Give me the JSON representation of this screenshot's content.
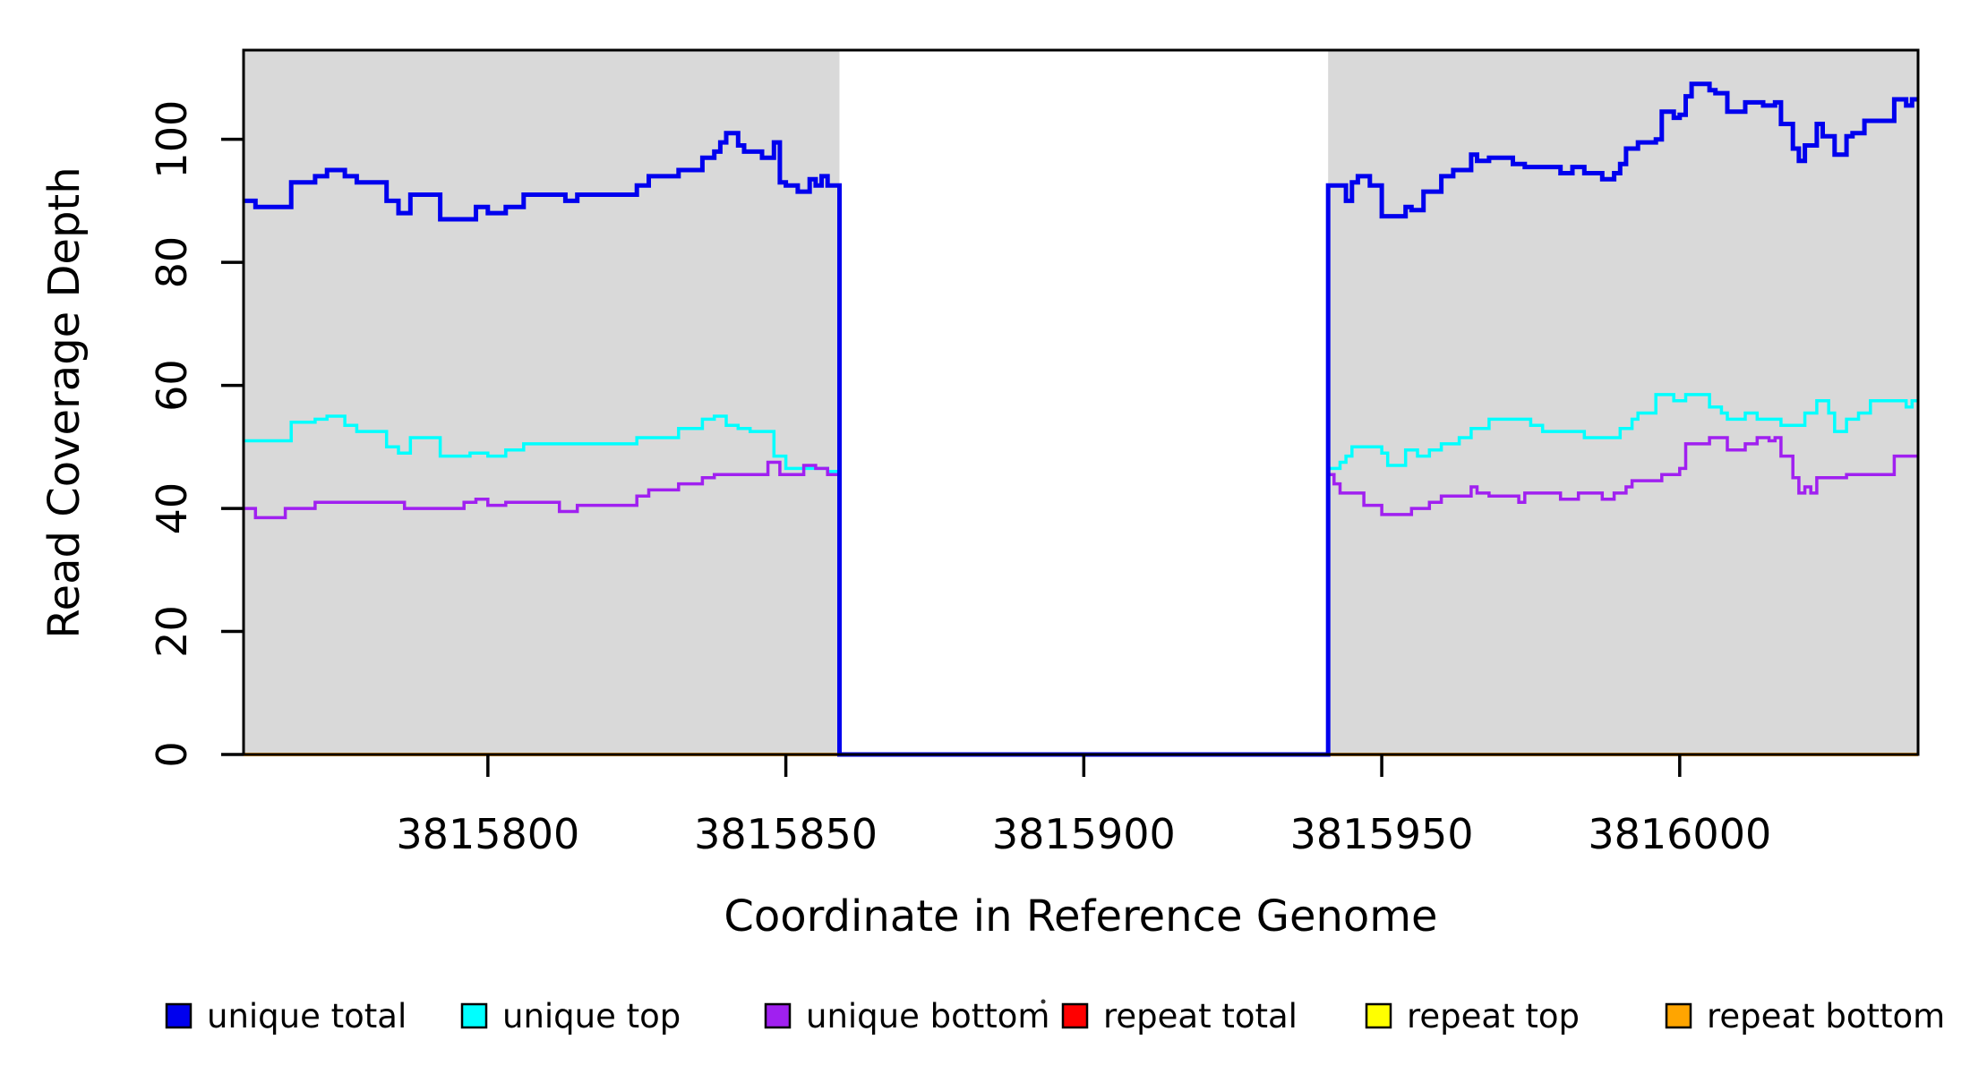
{
  "chart_data": {
    "type": "step-line",
    "title": "",
    "xlabel": "Coordinate in Reference Genome",
    "ylabel": "Read Coverage Depth",
    "xlim": [
      3815759,
      3816040
    ],
    "ylim": [
      0,
      114.5
    ],
    "x_ticks": [
      3815800,
      3815850,
      3815900,
      3815950,
      3816000
    ],
    "y_ticks": [
      0,
      20,
      40,
      60,
      80,
      100
    ],
    "grid": false,
    "legend_position": "bottom",
    "background_regions": [
      {
        "name": "covered-left",
        "from": 3815759,
        "to": 3815859,
        "color": "#D9D9D9"
      },
      {
        "name": "coverage-gap",
        "from": 3815859,
        "to": 3815941,
        "color": "#FFFFFF"
      },
      {
        "name": "covered-right",
        "from": 3815941,
        "to": 3816040,
        "color": "#D9D9D9"
      }
    ],
    "series": [
      {
        "name": "repeat total",
        "color": "#FF0000",
        "line_width": 3.5,
        "points": [
          [
            3815759,
            0
          ]
        ]
      },
      {
        "name": "repeat top",
        "color": "#FFFF00",
        "line_width": 3.5,
        "points": [
          [
            3815759,
            0
          ]
        ]
      },
      {
        "name": "repeat bottom",
        "color": "#FFA500",
        "line_width": 4,
        "points": [
          [
            3815759,
            0
          ]
        ]
      },
      {
        "name": "unique top",
        "color": "#00FFFF",
        "line_width": 3.5,
        "points": [
          [
            3815759,
            51
          ],
          [
            3815767,
            54
          ],
          [
            3815771,
            54.5
          ],
          [
            3815773,
            55
          ],
          [
            3815776,
            53.5
          ],
          [
            3815778,
            52.5
          ],
          [
            3815783,
            50
          ],
          [
            3815785,
            49
          ],
          [
            3815787,
            51.5
          ],
          [
            3815792,
            48.5
          ],
          [
            3815797,
            49
          ],
          [
            3815800,
            48.5
          ],
          [
            3815803,
            49.5
          ],
          [
            3815806,
            50.5
          ],
          [
            3815825,
            51.5
          ],
          [
            3815832,
            53
          ],
          [
            3815836,
            54.5
          ],
          [
            3815838,
            55
          ],
          [
            3815840,
            53.5
          ],
          [
            3815842,
            53
          ],
          [
            3815844,
            52.5
          ],
          [
            3815848,
            48.5
          ],
          [
            3815850,
            46.5
          ],
          [
            3815857,
            46
          ],
          [
            3815859,
            0
          ],
          [
            3815941,
            46.5
          ],
          [
            3815943,
            47.5
          ],
          [
            3815944,
            48.5
          ],
          [
            3815945,
            50
          ],
          [
            3815950,
            49
          ],
          [
            3815951,
            47
          ],
          [
            3815954,
            49.5
          ],
          [
            3815956,
            48.5
          ],
          [
            3815958,
            49.5
          ],
          [
            3815960,
            50.5
          ],
          [
            3815963,
            51.5
          ],
          [
            3815965,
            53
          ],
          [
            3815968,
            54.5
          ],
          [
            3815975,
            53.5
          ],
          [
            3815977,
            52.5
          ],
          [
            3815984,
            51.5
          ],
          [
            3815990,
            53
          ],
          [
            3815992,
            54.5
          ],
          [
            3815993,
            55.5
          ],
          [
            3815996,
            58.5
          ],
          [
            3815999,
            57.5
          ],
          [
            3816001,
            58.5
          ],
          [
            3816005,
            56.5
          ],
          [
            3816007,
            55.5
          ],
          [
            3816008,
            54.5
          ],
          [
            3816011,
            55.5
          ],
          [
            3816013,
            54.5
          ],
          [
            3816017,
            53.5
          ],
          [
            3816021,
            55.5
          ],
          [
            3816023,
            57.5
          ],
          [
            3816025,
            55.5
          ],
          [
            3816026,
            52.5
          ],
          [
            3816028,
            54.5
          ],
          [
            3816030,
            55.5
          ],
          [
            3816032,
            57.5
          ],
          [
            3816038,
            56.5
          ],
          [
            3816039,
            57.5
          ]
        ]
      },
      {
        "name": "unique bottom",
        "color": "#A020F0",
        "line_width": 3.5,
        "points": [
          [
            3815759,
            40
          ],
          [
            3815761,
            38.5
          ],
          [
            3815766,
            40
          ],
          [
            3815771,
            41
          ],
          [
            3815786,
            40
          ],
          [
            3815796,
            41
          ],
          [
            3815798,
            41.5
          ],
          [
            3815800,
            40.5
          ],
          [
            3815803,
            41
          ],
          [
            3815811,
            41
          ],
          [
            3815812,
            39.5
          ],
          [
            3815815,
            40.5
          ],
          [
            3815825,
            42
          ],
          [
            3815827,
            43
          ],
          [
            3815832,
            44
          ],
          [
            3815836,
            45
          ],
          [
            3815838,
            45.5
          ],
          [
            3815847,
            47.5
          ],
          [
            3815849,
            45.5
          ],
          [
            3815853,
            47
          ],
          [
            3815855,
            46.5
          ],
          [
            3815857,
            45.5
          ],
          [
            3815859,
            0
          ],
          [
            3815941,
            45.5
          ],
          [
            3815942,
            44
          ],
          [
            3815943,
            42.5
          ],
          [
            3815947,
            40.5
          ],
          [
            3815950,
            39
          ],
          [
            3815955,
            40
          ],
          [
            3815958,
            41
          ],
          [
            3815960,
            42
          ],
          [
            3815965,
            43.5
          ],
          [
            3815966,
            42.5
          ],
          [
            3815968,
            42
          ],
          [
            3815973,
            41
          ],
          [
            3815974,
            42.5
          ],
          [
            3815980,
            41.5
          ],
          [
            3815983,
            42.5
          ],
          [
            3815987,
            41.5
          ],
          [
            3815989,
            42.5
          ],
          [
            3815991,
            43.5
          ],
          [
            3815992,
            44.5
          ],
          [
            3815997,
            45.5
          ],
          [
            3816000,
            46.5
          ],
          [
            3816001,
            50.5
          ],
          [
            3816005,
            51.5
          ],
          [
            3816008,
            49.5
          ],
          [
            3816011,
            50.5
          ],
          [
            3816013,
            51.5
          ],
          [
            3816015,
            51
          ],
          [
            3816016,
            51.5
          ],
          [
            3816017,
            48.5
          ],
          [
            3816019,
            45
          ],
          [
            3816020,
            42.5
          ],
          [
            3816021,
            43.5
          ],
          [
            3816022,
            42.5
          ],
          [
            3816023,
            45
          ],
          [
            3816028,
            45.5
          ],
          [
            3816036,
            48.5
          ]
        ]
      },
      {
        "name": "unique total",
        "color": "#0000EE",
        "line_width": 5,
        "points": [
          [
            3815759,
            90
          ],
          [
            3815761,
            89
          ],
          [
            3815767,
            93
          ],
          [
            3815771,
            94
          ],
          [
            3815773,
            95
          ],
          [
            3815776,
            94
          ],
          [
            3815778,
            93
          ],
          [
            3815783,
            90
          ],
          [
            3815785,
            88
          ],
          [
            3815787,
            91
          ],
          [
            3815792,
            87
          ],
          [
            3815798,
            89
          ],
          [
            3815800,
            88
          ],
          [
            3815803,
            89
          ],
          [
            3815806,
            91
          ],
          [
            3815813,
            90
          ],
          [
            3815815,
            91
          ],
          [
            3815825,
            92.5
          ],
          [
            3815827,
            94
          ],
          [
            3815832,
            95
          ],
          [
            3815836,
            97
          ],
          [
            3815838,
            98
          ],
          [
            3815839,
            99.5
          ],
          [
            3815840,
            101
          ],
          [
            3815842,
            99
          ],
          [
            3815843,
            98
          ],
          [
            3815846,
            97
          ],
          [
            3815848,
            99.5
          ],
          [
            3815849,
            93
          ],
          [
            3815850,
            92.5
          ],
          [
            3815852,
            91.5
          ],
          [
            3815854,
            93.5
          ],
          [
            3815855,
            92.5
          ],
          [
            3815856,
            94
          ],
          [
            3815857,
            92.5
          ],
          [
            3815859,
            0
          ],
          [
            3815941,
            92.5
          ],
          [
            3815944,
            90
          ],
          [
            3815945,
            93
          ],
          [
            3815946,
            94
          ],
          [
            3815948,
            92.5
          ],
          [
            3815950,
            87.5
          ],
          [
            3815954,
            89
          ],
          [
            3815955,
            88.5
          ],
          [
            3815957,
            91.5
          ],
          [
            3815960,
            94
          ],
          [
            3815962,
            95
          ],
          [
            3815965,
            97.5
          ],
          [
            3815966,
            96.5
          ],
          [
            3815968,
            97
          ],
          [
            3815972,
            96
          ],
          [
            3815974,
            95.5
          ],
          [
            3815980,
            94.5
          ],
          [
            3815982,
            95.5
          ],
          [
            3815984,
            94.5
          ],
          [
            3815987,
            93.5
          ],
          [
            3815989,
            94.5
          ],
          [
            3815990,
            96
          ],
          [
            3815991,
            98.5
          ],
          [
            3815993,
            99.5
          ],
          [
            3815996,
            100
          ],
          [
            3815997,
            104.5
          ],
          [
            3815999,
            103.5
          ],
          [
            3816000,
            104
          ],
          [
            3816001,
            107
          ],
          [
            3816002,
            109
          ],
          [
            3816005,
            108
          ],
          [
            3816006,
            107.5
          ],
          [
            3816008,
            104.5
          ],
          [
            3816011,
            106
          ],
          [
            3816014,
            105.5
          ],
          [
            3816016,
            106
          ],
          [
            3816017,
            102.5
          ],
          [
            3816019,
            98.5
          ],
          [
            3816020,
            96.5
          ],
          [
            3816021,
            99
          ],
          [
            3816023,
            102.5
          ],
          [
            3816024,
            100.5
          ],
          [
            3816026,
            97.5
          ],
          [
            3816028,
            100.5
          ],
          [
            3816029,
            101
          ],
          [
            3816031,
            103
          ],
          [
            3816036,
            106.5
          ],
          [
            3816038,
            105.5
          ],
          [
            3816039,
            106.5
          ]
        ]
      }
    ],
    "legend": [
      {
        "label": "unique total",
        "color": "#0000EE"
      },
      {
        "label": "unique top",
        "color": "#00FFFF"
      },
      {
        "label": "unique bottom",
        "color": "#A020F0"
      },
      {
        "label": "repeat total",
        "color": "#FF0000"
      },
      {
        "label": "repeat top",
        "color": "#FFFF00"
      },
      {
        "label": "repeat bottom",
        "color": "#FFA500"
      }
    ]
  }
}
